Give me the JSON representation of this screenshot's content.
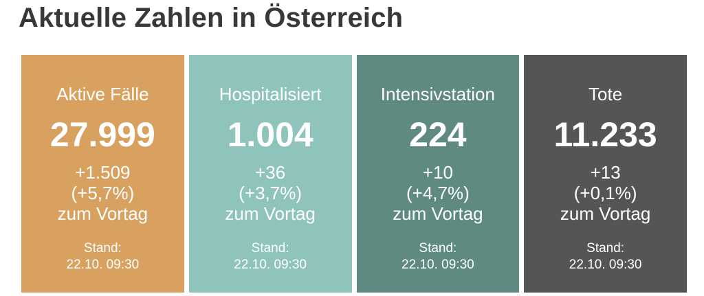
{
  "header": {
    "title": "Aktuelle Zahlen in Österreich"
  },
  "colors": {
    "title_text": "#383838",
    "card_text": "#ffffff",
    "card_active": "#d9a15f",
    "card_hospital": "#8ec4bb",
    "card_icu": "#5e8a82",
    "card_deaths": "#555555"
  },
  "cards": [
    {
      "label": "Aktive Fälle",
      "value": "27.999",
      "delta": "+1.509",
      "percent": "(+5,7%)",
      "suffix": "zum Vortag",
      "stand_label": "Stand:",
      "stand_time": "22.10. 09:30",
      "color": "#d9a15f"
    },
    {
      "label": "Hospitalisiert",
      "value": "1.004",
      "delta": "+36",
      "percent": "(+3,7%)",
      "suffix": "zum Vortag",
      "stand_label": "Stand:",
      "stand_time": "22.10. 09:30",
      "color": "#8ec4bb"
    },
    {
      "label": "Intensivstation",
      "value": "224",
      "delta": "+10",
      "percent": "(+4,7%)",
      "suffix": "zum Vortag",
      "stand_label": "Stand:",
      "stand_time": "22.10. 09:30",
      "color": "#5e8a82"
    },
    {
      "label": "Tote",
      "value": "11.233",
      "delta": "+13",
      "percent": "(+0,1%)",
      "suffix": "zum Vortag",
      "stand_label": "Stand:",
      "stand_time": "22.10. 09:30",
      "color": "#555555"
    }
  ]
}
